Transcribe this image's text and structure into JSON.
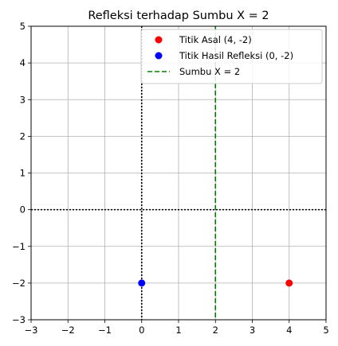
{
  "chart_data": {
    "type": "scatter",
    "title": "Refleksi terhadap Sumbu X = 2",
    "xlabel": "",
    "ylabel": "",
    "xlim": [
      -3,
      5
    ],
    "ylim": [
      -3,
      5
    ],
    "grid": true,
    "x_ticks": [
      -3,
      -2,
      -1,
      0,
      1,
      2,
      3,
      4,
      5
    ],
    "y_ticks": [
      -3,
      -2,
      -1,
      0,
      1,
      2,
      3,
      4,
      5
    ],
    "x_tick_labels": [
      "−3",
      "−2",
      "−1",
      "0",
      "1",
      "2",
      "3",
      "4",
      "5"
    ],
    "y_tick_labels": [
      "−3",
      "−2",
      "−1",
      "0",
      "1",
      "2",
      "3",
      "4",
      "5"
    ],
    "series": [
      {
        "name": "Titik Asal (4, -2)",
        "kind": "point",
        "x": 4,
        "y": -2,
        "color": "#ff0000"
      },
      {
        "name": "Titik Hasil Refleksi (0, -2)",
        "kind": "point",
        "x": 0,
        "y": -2,
        "color": "#0000ff"
      },
      {
        "name": "Sumbu X = 2",
        "kind": "vline",
        "x": 2,
        "color": "#008000",
        "style": "dashed"
      }
    ],
    "reference_lines": [
      {
        "kind": "hline",
        "y": 0,
        "color": "#000000",
        "style": "dotted"
      },
      {
        "kind": "vline",
        "x": 0,
        "color": "#000000",
        "style": "dotted"
      }
    ],
    "legend_position": "top-right"
  }
}
